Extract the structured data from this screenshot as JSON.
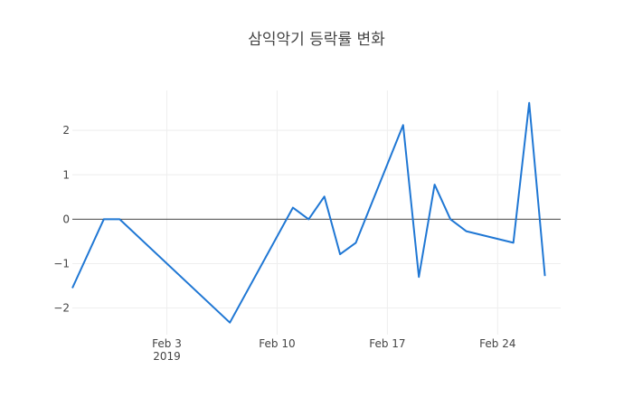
{
  "chart_data": {
    "type": "line",
    "title": "삼익악기 등락률 변화",
    "xlabel": "",
    "ylabel": "",
    "xlim": [
      "2019-01-28",
      "2019-02-28"
    ],
    "ylim": [
      -2.6,
      2.9
    ],
    "grid": true,
    "x_ticks": [
      {
        "date": "2019-02-03",
        "label": "Feb 3",
        "sublabel": "2019"
      },
      {
        "date": "2019-02-10",
        "label": "Feb 10"
      },
      {
        "date": "2019-02-17",
        "label": "Feb 17"
      },
      {
        "date": "2019-02-24",
        "label": "Feb 24"
      }
    ],
    "y_ticks": [
      {
        "value": -2,
        "label": "−2"
      },
      {
        "value": -1,
        "label": "−1"
      },
      {
        "value": 0,
        "label": "0"
      },
      {
        "value": 1,
        "label": "1"
      },
      {
        "value": 2,
        "label": "2"
      }
    ],
    "series": [
      {
        "color": "#1f77d4",
        "x": [
          "2019-01-28",
          "2019-01-30",
          "2019-01-31",
          "2019-02-07",
          "2019-02-08",
          "2019-02-11",
          "2019-02-12",
          "2019-02-13",
          "2019-02-14",
          "2019-02-15",
          "2019-02-18",
          "2019-02-19",
          "2019-02-20",
          "2019-02-21",
          "2019-02-22",
          "2019-02-25",
          "2019-02-26",
          "2019-02-27"
        ],
        "y": [
          -1.55,
          0.0,
          0.0,
          -2.33,
          null,
          0.26,
          0.0,
          0.51,
          -0.79,
          -0.53,
          2.12,
          -1.3,
          0.78,
          0.0,
          -0.27,
          -0.53,
          2.62,
          -1.28
        ]
      }
    ]
  }
}
